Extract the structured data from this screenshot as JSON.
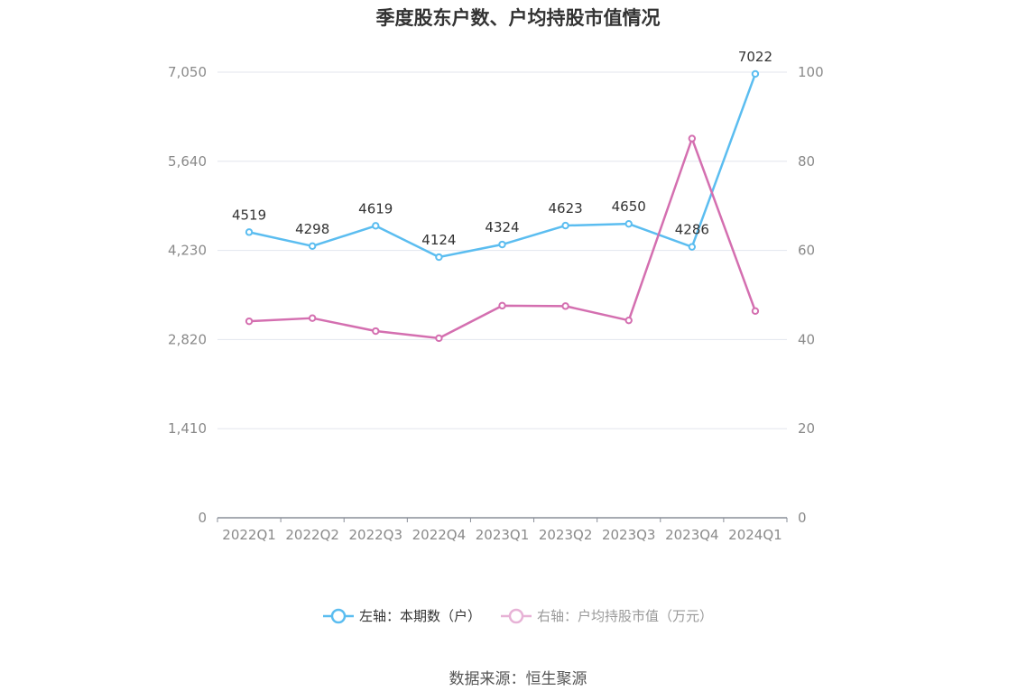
{
  "title": "季度股东户数、户均持股市值情况",
  "source_text": "数据来源：恒生聚源",
  "chart_data": {
    "type": "line",
    "categories": [
      "2022Q1",
      "2022Q2",
      "2022Q3",
      "2022Q4",
      "2023Q1",
      "2023Q2",
      "2023Q3",
      "2023Q4",
      "2024Q1"
    ],
    "series": [
      {
        "name": "左轴：本期数（户）",
        "axis": "left",
        "color": "#5bbdf0",
        "values": [
          4519,
          4298,
          4619,
          4124,
          4324,
          4623,
          4650,
          4286,
          7022
        ],
        "show_labels": true
      },
      {
        "name": "右轴：户均持股市值（万元）",
        "axis": "right",
        "color": "#d46fb0",
        "values": [
          44.1,
          44.8,
          41.9,
          40.3,
          47.6,
          47.5,
          44.3,
          85.1,
          46.4
        ],
        "show_labels": false
      }
    ],
    "left_axis": {
      "min": 0,
      "max": 7050,
      "ticks": [
        0,
        1410,
        2820,
        4230,
        5640,
        7050
      ],
      "tick_labels": [
        "0",
        "1,410",
        "2,820",
        "4,230",
        "5,640",
        "7,050"
      ]
    },
    "right_axis": {
      "min": 0,
      "max": 100,
      "ticks": [
        0,
        20,
        40,
        60,
        80,
        100
      ],
      "tick_labels": [
        "0",
        "20",
        "40",
        "60",
        "80",
        "100"
      ]
    },
    "grid": true,
    "legend_position": "bottom"
  }
}
